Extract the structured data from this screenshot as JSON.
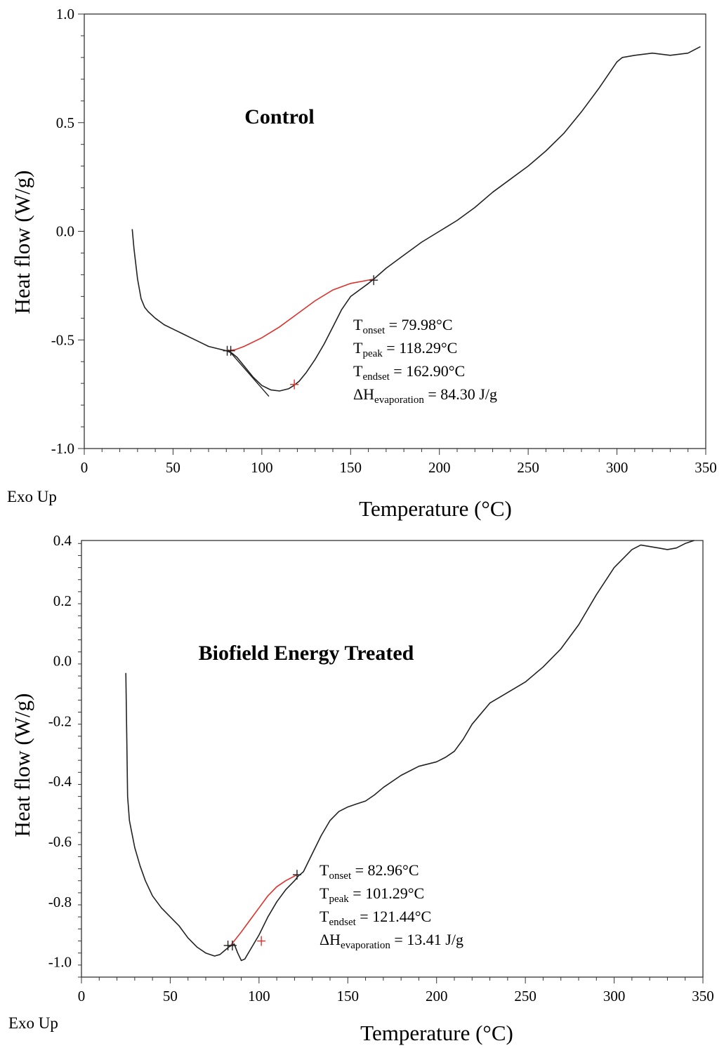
{
  "chart_data": [
    {
      "type": "line",
      "title": "Control",
      "xlabel": "Temperature (°C)",
      "ylabel": "Heat flow (W/g)",
      "corner_label": "Exo Up",
      "xlim": [
        0,
        350
      ],
      "ylim": [
        -1.0,
        1.0
      ],
      "xticks": [
        0,
        50,
        100,
        150,
        200,
        250,
        300,
        350
      ],
      "xtick_labels": [
        "0",
        "50",
        "100",
        "150",
        "200",
        "250",
        "300",
        "350"
      ],
      "yticks": [
        -1.0,
        -0.5,
        0.0,
        0.5,
        1.0
      ],
      "ytick_labels": [
        "-1.0",
        "-0.5",
        "0.0",
        "0.5",
        "1.0"
      ],
      "colors": {
        "curve": "#222222",
        "baseline": "#e0302a"
      },
      "series": [
        {
          "x": [
            27,
            28,
            30,
            32,
            34,
            36,
            40,
            45,
            50,
            55,
            60,
            65,
            70,
            75,
            80,
            83,
            86,
            90,
            95,
            100,
            105,
            110,
            115,
            118,
            121,
            125,
            130,
            135,
            140,
            145,
            150,
            155,
            160,
            163,
            170,
            180,
            190,
            200,
            210,
            220,
            230,
            240,
            250,
            260,
            270,
            280,
            290,
            295,
            300,
            303,
            310,
            320,
            330,
            340,
            347
          ],
          "y": [
            0.01,
            -0.08,
            -0.22,
            -0.31,
            -0.35,
            -0.37,
            -0.4,
            -0.43,
            -0.45,
            -0.47,
            -0.49,
            -0.51,
            -0.53,
            -0.54,
            -0.55,
            -0.56,
            -0.58,
            -0.62,
            -0.67,
            -0.71,
            -0.73,
            -0.735,
            -0.725,
            -0.71,
            -0.69,
            -0.65,
            -0.59,
            -0.52,
            -0.44,
            -0.36,
            -0.3,
            -0.27,
            -0.24,
            -0.22,
            -0.17,
            -0.11,
            -0.05,
            0.0,
            0.05,
            0.11,
            0.18,
            0.24,
            0.3,
            0.37,
            0.45,
            0.55,
            0.66,
            0.72,
            0.78,
            0.8,
            0.81,
            0.82,
            0.81,
            0.82,
            0.85
          ]
        }
      ],
      "onset_tangent": {
        "x": [
          81,
          104
        ],
        "y": [
          -0.545,
          -0.76
        ]
      },
      "integration_baseline": {
        "x": [
          80,
          85,
          90,
          100,
          110,
          120,
          130,
          140,
          150,
          163
        ],
        "y": [
          -0.55,
          -0.545,
          -0.53,
          -0.49,
          -0.44,
          -0.38,
          -0.32,
          -0.27,
          -0.24,
          -0.22
        ]
      },
      "markers": [
        {
          "x": 80.5,
          "y": -0.55,
          "color": "#222222"
        },
        {
          "x": 82.5,
          "y": -0.55,
          "color": "#222222"
        },
        {
          "x": 118.3,
          "y": -0.705,
          "color": "#e0302a"
        },
        {
          "x": 163.0,
          "y": -0.225,
          "color": "#222222"
        }
      ],
      "annotations": {
        "onset": {
          "main": "T",
          "sub": "onset",
          "value": " = 79.98°C"
        },
        "peak": {
          "main": "T",
          "sub": "peak",
          "value": " = 118.29°C"
        },
        "endset": {
          "main": "T",
          "sub": "endset",
          "value": " = 162.90°C"
        },
        "enthalpy": {
          "main": "ΔH",
          "sub": "evaporation",
          "value": " = 84.30 J/g"
        }
      }
    },
    {
      "type": "line",
      "title": "Biofield Energy Treated",
      "xlabel": "Temperature (°C)",
      "ylabel": "Heat flow (W/g)",
      "corner_label": "Exo Up",
      "xlim": [
        0,
        350
      ],
      "ylim": [
        -1.05,
        0.4
      ],
      "xticks": [
        0,
        50,
        100,
        150,
        200,
        250,
        300,
        350
      ],
      "xtick_labels": [
        "0",
        "50",
        "100",
        "150",
        "200",
        "250",
        "300",
        "350"
      ],
      "yticks": [
        -1.0,
        -0.8,
        -0.6,
        -0.4,
        -0.2,
        0.0,
        0.2,
        0.4
      ],
      "ytick_labels": [
        "-1.0",
        "-0.8",
        "-0.6",
        "-0.4",
        "-0.2",
        "0.0",
        "0.2",
        "0.4"
      ],
      "colors": {
        "curve": "#222222",
        "baseline": "#e0302a"
      },
      "series": [
        {
          "x": [
            25,
            25.5,
            26,
            27,
            28,
            30,
            33,
            36,
            40,
            45,
            50,
            55,
            60,
            65,
            70,
            75,
            78,
            80,
            83,
            86,
            88,
            90,
            92,
            95,
            100,
            105,
            110,
            115,
            120,
            122,
            125,
            130,
            135,
            140,
            145,
            150,
            155,
            160,
            165,
            170,
            180,
            190,
            200,
            205,
            210,
            215,
            220,
            225,
            230,
            240,
            250,
            260,
            270,
            280,
            290,
            300,
            310,
            315,
            320,
            325,
            330,
            335,
            340,
            345
          ],
          "y": [
            -0.04,
            -0.25,
            -0.45,
            -0.53,
            -0.56,
            -0.62,
            -0.68,
            -0.73,
            -0.78,
            -0.82,
            -0.85,
            -0.88,
            -0.92,
            -0.95,
            -0.97,
            -0.98,
            -0.975,
            -0.965,
            -0.95,
            -0.94,
            -0.97,
            -0.995,
            -0.99,
            -0.96,
            -0.91,
            -0.85,
            -0.8,
            -0.76,
            -0.73,
            -0.715,
            -0.7,
            -0.64,
            -0.58,
            -0.53,
            -0.5,
            -0.485,
            -0.475,
            -0.465,
            -0.445,
            -0.42,
            -0.38,
            -0.35,
            -0.335,
            -0.32,
            -0.3,
            -0.26,
            -0.21,
            -0.175,
            -0.14,
            -0.105,
            -0.07,
            -0.02,
            0.04,
            0.12,
            0.22,
            0.31,
            0.37,
            0.385,
            0.38,
            0.375,
            0.37,
            0.375,
            0.39,
            0.4
          ]
        }
      ],
      "integration_baseline": {
        "x": [
          84,
          90,
          95,
          100,
          105,
          110,
          115,
          121.4
        ],
        "y": [
          -0.945,
          -0.9,
          -0.86,
          -0.82,
          -0.78,
          -0.75,
          -0.73,
          -0.71
        ]
      },
      "markers": [
        {
          "x": 82.5,
          "y": -0.945,
          "color": "#222222"
        },
        {
          "x": 85.0,
          "y": -0.945,
          "color": "#222222"
        },
        {
          "x": 101.3,
          "y": -0.93,
          "color": "#e0302a"
        },
        {
          "x": 121.4,
          "y": -0.71,
          "color": "#222222"
        }
      ],
      "annotations": {
        "onset": {
          "main": "T",
          "sub": "onset",
          "value": " = 82.96°C"
        },
        "peak": {
          "main": "T",
          "sub": "peak",
          "value": " = 101.29°C"
        },
        "endset": {
          "main": "T",
          "sub": "endset",
          "value": " = 121.44°C"
        },
        "enthalpy": {
          "main": "ΔH",
          "sub": "evaporation",
          "value": " = 13.41 J/g"
        }
      }
    }
  ]
}
